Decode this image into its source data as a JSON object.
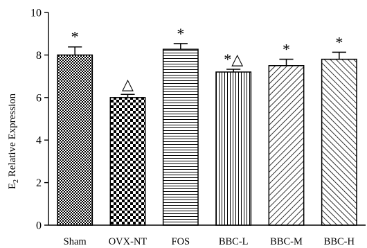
{
  "chart_data": {
    "type": "bar",
    "title": "",
    "xlabel": "",
    "ylabel": "E",
    "ylabel_sub": "2",
    "ylabel_rest": " Relative Expression",
    "ylim": [
      0,
      10
    ],
    "yticks": [
      "0",
      "2",
      "4",
      "6",
      "8",
      "10"
    ],
    "categories": [
      "Sham",
      "OVX-NT",
      "FOS",
      "BBC-L",
      "BBC-M",
      "BBC-H"
    ],
    "values": [
      8.0,
      6.0,
      8.27,
      7.2,
      7.5,
      7.8
    ],
    "errors": [
      0.38,
      0.15,
      0.27,
      0.13,
      0.3,
      0.33
    ],
    "significance": [
      "*",
      "△",
      "*",
      "*△",
      "*",
      "*"
    ],
    "fill_patterns": [
      "checker-fine",
      "checker-coarse",
      "horizontal-lines",
      "vertical-lines",
      "diagonal-up",
      "diagonal-down"
    ],
    "grid": false,
    "legend": "none",
    "colors": {
      "bar_stroke": "#000000",
      "pattern_ink": "#000000",
      "background": "#ffffff"
    }
  }
}
